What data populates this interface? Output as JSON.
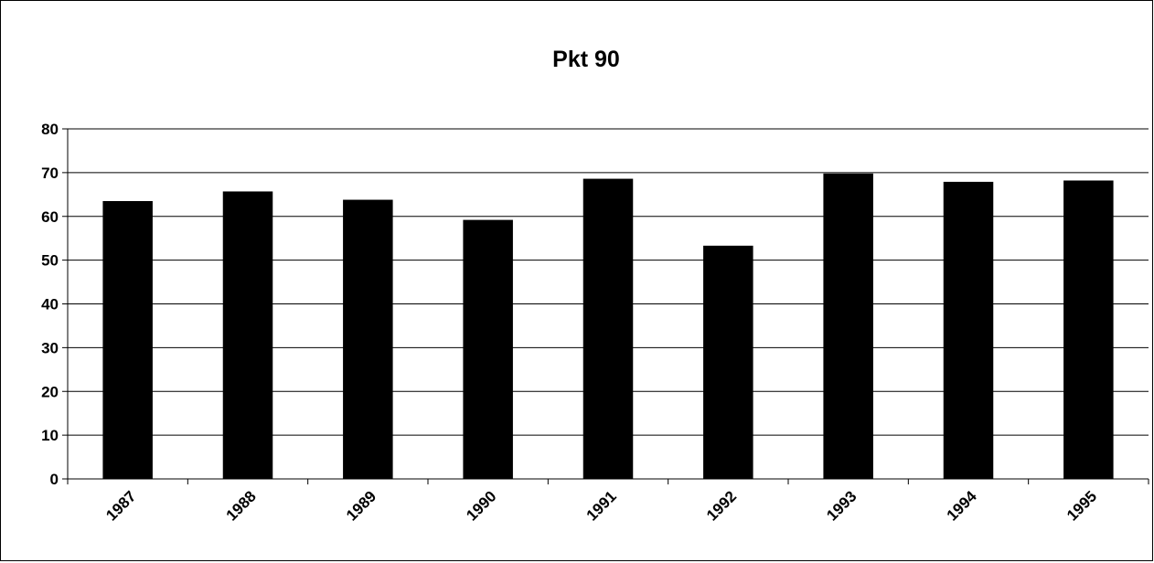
{
  "chart_data": {
    "type": "bar",
    "title": "Pkt 90",
    "xlabel": "",
    "ylabel": "",
    "categories": [
      "1987",
      "1988",
      "1989",
      "1990",
      "1991",
      "1992",
      "1993",
      "1994",
      "1995"
    ],
    "values": [
      63.5,
      65.7,
      63.8,
      59.2,
      68.6,
      53.3,
      69.8,
      67.9,
      68.2
    ],
    "ylim": [
      0,
      80
    ],
    "yticks": [
      "0",
      "10",
      "20",
      "30",
      "40",
      "50",
      "60",
      "70",
      "80"
    ],
    "grid": true,
    "legend": "none",
    "colors": {
      "bar": "#000000",
      "grid": "#000000",
      "background": "#ffffff"
    }
  }
}
